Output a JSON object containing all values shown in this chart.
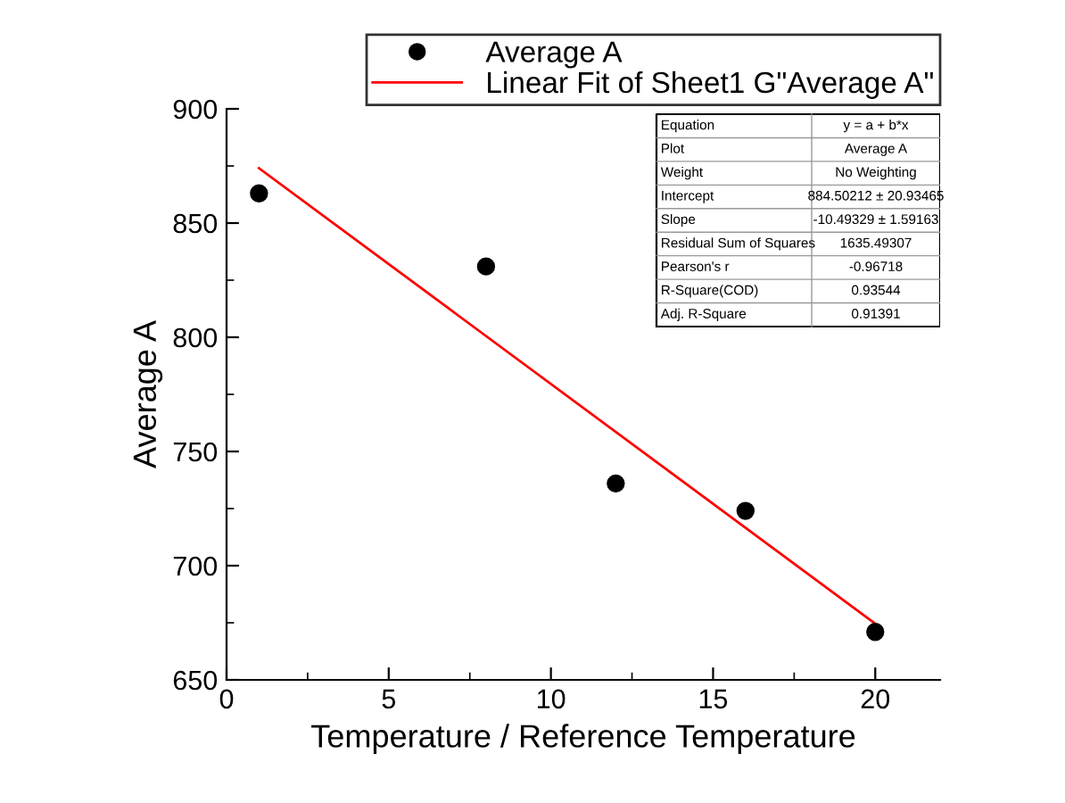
{
  "chart_data": {
    "type": "scatter",
    "xlabel": "Temperature / Reference Temperature",
    "ylabel": "Average A",
    "xlim": [
      0,
      22
    ],
    "xticks": [
      0,
      5,
      10,
      15,
      20
    ],
    "ylim": [
      650,
      900
    ],
    "yticks": [
      650,
      700,
      750,
      800,
      850,
      900
    ],
    "grid": false,
    "legend": "top right",
    "marker": "circle",
    "series": [
      {
        "name": "Average A",
        "color": "#000000",
        "x": [
          1,
          8,
          12,
          16,
          20
        ],
        "values": [
          863,
          831,
          736,
          724,
          671
        ]
      },
      {
        "name": "Linear Fit of Sheet1 G\"Average A\"",
        "type": "line",
        "color": "#ff0000",
        "line_style": "solid",
        "marker": "none",
        "x": [
          1,
          20
        ],
        "values": [
          874.0,
          674.6
        ]
      }
    ],
    "annotations": [
      "Equation",
      "y = a + b*x",
      "Plot",
      "Average A",
      "Weight",
      "No Weighting",
      "Intercept",
      "884.50212 ± 20.93465",
      "Slope",
      "-10.49329 ± 1.59163",
      "Residual Sum of Squares",
      "1635.49307",
      "Pearson's r",
      "-0.96718",
      "R-Square(COD)",
      "0.93544",
      "Adj. R-Square",
      "0.91391"
    ]
  }
}
